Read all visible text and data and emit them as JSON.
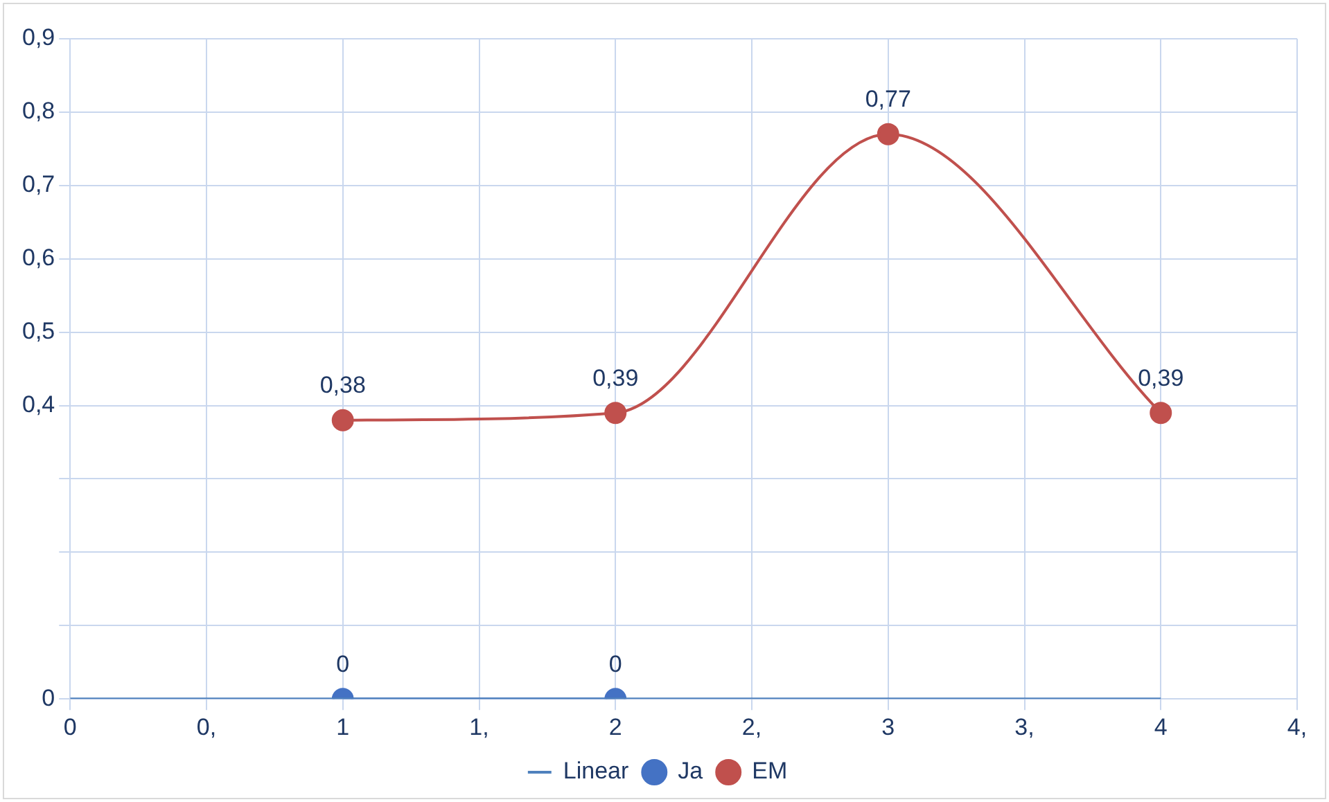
{
  "chart_data": {
    "type": "line",
    "xlim": [
      0,
      4.5
    ],
    "xticks": [
      0,
      {
        "value": 0.5,
        "label": "0,"
      },
      1,
      {
        "value": 1.5,
        "label": "1,"
      },
      2,
      {
        "value": 2.5,
        "label": "2,"
      },
      3,
      {
        "value": 3.5,
        "label": "3,"
      },
      4,
      {
        "value": 4.5,
        "label": "4,"
      }
    ],
    "ylim": [
      0,
      0.9
    ],
    "yticks": [
      {
        "value": 0,
        "label": "0"
      },
      {
        "value": 0.1,
        "label": null
      },
      {
        "value": 0.2,
        "label": null
      },
      {
        "value": 0.3,
        "label": null
      },
      {
        "value": 0.4,
        "label": "0,4"
      },
      {
        "value": 0.5,
        "label": "0,5"
      },
      {
        "value": 0.6,
        "label": "0,6"
      },
      {
        "value": 0.7,
        "label": "0,7"
      },
      {
        "value": 0.8,
        "label": "0,8"
      },
      {
        "value": 0.9,
        "label": "0,9"
      }
    ],
    "series": [
      {
        "name": "Linear",
        "type": "line",
        "color": "#4f81bd",
        "x": [
          0,
          4
        ],
        "values": [
          0,
          0
        ],
        "marker": "none"
      },
      {
        "name": "Ja",
        "type": "line",
        "color": "#4472c4",
        "x": [
          1,
          2
        ],
        "values": [
          0,
          0
        ],
        "marker": "circle",
        "value_labels": [
          "0",
          "0"
        ]
      },
      {
        "name": "EM",
        "type": "line",
        "color": "#c0504d",
        "x": [
          1,
          2,
          3,
          4
        ],
        "values": [
          0.38,
          0.39,
          0.77,
          0.39
        ],
        "marker": "circle",
        "value_labels": [
          "0,38",
          "0,39",
          "0,77",
          "0,39"
        ]
      }
    ],
    "grid": true,
    "legend": "bottom"
  }
}
